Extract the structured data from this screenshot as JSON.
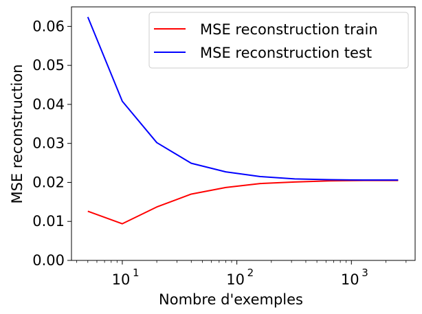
{
  "chart_data": {
    "type": "line",
    "xscale": "log",
    "xlabel": "Nombre d'exemples",
    "ylabel": "MSE reconstruction",
    "xlim": [
      3.6,
      3600
    ],
    "ylim": [
      0.0,
      0.065
    ],
    "x_major_ticks": [
      10,
      100,
      1000
    ],
    "x_major_tick_labels": [
      {
        "base": "10",
        "exp": "1"
      },
      {
        "base": "10",
        "exp": "2"
      },
      {
        "base": "10",
        "exp": "3"
      }
    ],
    "y_ticks": [
      0.0,
      0.01,
      0.02,
      0.03,
      0.04,
      0.05,
      0.06
    ],
    "y_tick_labels": [
      "0.00",
      "0.01",
      "0.02",
      "0.03",
      "0.04",
      "0.05",
      "0.06"
    ],
    "grid": false,
    "legend_position": "top-right",
    "x": [
      5,
      10,
      20,
      40,
      80,
      160,
      320,
      640,
      1280,
      2560
    ],
    "series": [
      {
        "name": "MSE reconstruction train",
        "color": "#ff0000",
        "values": [
          0.0126,
          0.0094,
          0.0137,
          0.017,
          0.0187,
          0.0197,
          0.0201,
          0.0204,
          0.0205,
          0.0205
        ]
      },
      {
        "name": "MSE reconstruction test",
        "color": "#0000ff",
        "values": [
          0.0624,
          0.0408,
          0.0302,
          0.0249,
          0.0227,
          0.0215,
          0.0209,
          0.0207,
          0.0206,
          0.0206
        ]
      }
    ]
  }
}
